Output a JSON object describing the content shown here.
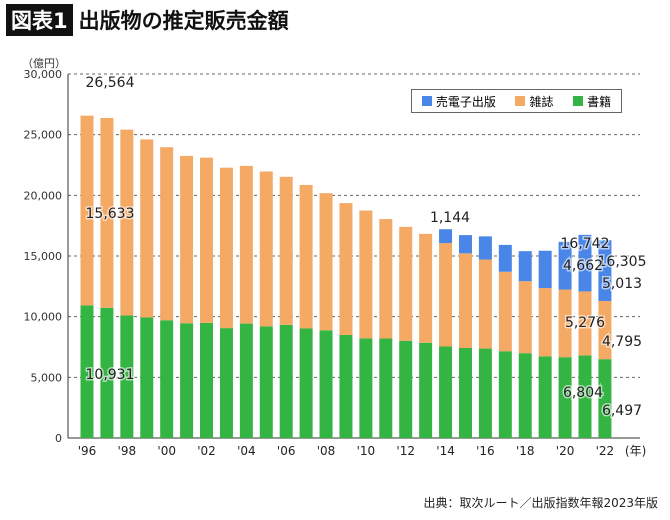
{
  "title_badge": "図表1",
  "title": "出版物の推定販売金額",
  "source": "出典：取次ルート／出版指数年報2023年版",
  "chart_data": {
    "type": "bar",
    "stacked": true,
    "ylabel": "（億円）",
    "xunit": "(年)",
    "ylim": [
      0,
      30000
    ],
    "yticks": [
      "0",
      "5,000",
      "10,000",
      "15,000",
      "20,000",
      "25,000",
      "30,000"
    ],
    "grid": true,
    "legend_position": "top-right",
    "categories": [
      1996,
      1997,
      1998,
      1999,
      2000,
      2001,
      2002,
      2003,
      2004,
      2005,
      2006,
      2007,
      2008,
      2009,
      2010,
      2011,
      2012,
      2013,
      2014,
      2015,
      2016,
      2017,
      2018,
      2019,
      2020,
      2021,
      2022
    ],
    "xticklabels": [
      "'96",
      "'98",
      "'00",
      "'02",
      "'04",
      "'06",
      "'08",
      "'10",
      "'12",
      "'14",
      "'16",
      "'18",
      "'20",
      "'22"
    ],
    "series": [
      {
        "name": "書籍",
        "color": "#34b443",
        "values": [
          10931,
          10730,
          10100,
          9936,
          9706,
          9456,
          9490,
          9056,
          9429,
          9197,
          9326,
          9026,
          8878,
          8492,
          8213,
          8199,
          8013,
          7851,
          7544,
          7419,
          7370,
          7152,
          6991,
          6723,
          6661,
          6804,
          6497
        ]
      },
      {
        "name": "雑誌",
        "color": "#f4a965",
        "values": [
          15633,
          15644,
          15315,
          14672,
          14261,
          13794,
          13616,
          13222,
          12998,
          12767,
          12200,
          11827,
          11299,
          10864,
          10536,
          9844,
          9385,
          8972,
          8520,
          7801,
          7339,
          6548,
          5930,
          5637,
          5576,
          5276,
          4795
        ]
      },
      {
        "name": "売電子出版",
        "color": "#4a86e8",
        "values": [
          0,
          0,
          0,
          0,
          0,
          0,
          0,
          0,
          0,
          0,
          0,
          0,
          0,
          0,
          0,
          0,
          0,
          0,
          1144,
          1502,
          1909,
          2215,
          2479,
          3072,
          3931,
          4662,
          5013
        ]
      }
    ],
    "legend_order": [
      "売電子出版",
      "雑誌",
      "書籍"
    ],
    "data_labels": [
      {
        "year": 1996,
        "series": "total",
        "text": "26,564"
      },
      {
        "year": 1996,
        "series": "雑誌",
        "text": "15,633"
      },
      {
        "year": 1996,
        "series": "書籍",
        "text": "10,931"
      },
      {
        "year": 2014,
        "series": "売電子出版",
        "text": "1,144"
      },
      {
        "year": 2021,
        "series": "total",
        "text": "16,742"
      },
      {
        "year": 2022,
        "series": "total",
        "text": "16,305"
      },
      {
        "year": 2021,
        "series": "売電子出版",
        "text": "4,662"
      },
      {
        "year": 2022,
        "series": "売電子出版",
        "text": "5,013"
      },
      {
        "year": 2021,
        "series": "雑誌",
        "text": "5,276"
      },
      {
        "year": 2022,
        "series": "雑誌",
        "text": "4,795"
      },
      {
        "year": 2021,
        "series": "書籍",
        "text": "6,804"
      },
      {
        "year": 2022,
        "series": "書籍",
        "text": "6,497"
      }
    ]
  }
}
